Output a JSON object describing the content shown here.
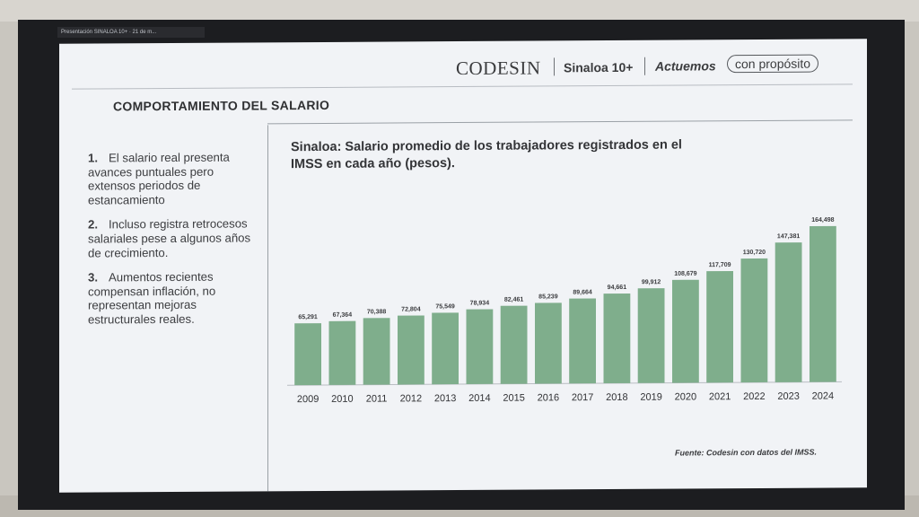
{
  "window": {
    "tab_label": "Presentación SINALOA 10+ · 21 de m..."
  },
  "header": {
    "logo_text": "CODESIN",
    "brand": "Sinaloa 10+",
    "slogan_part1": "Actuemos",
    "slogan_part2": "con propósito"
  },
  "slide": {
    "section_title": "COMPORTAMIENTO DEL SALARIO",
    "points": [
      {
        "number": "1.",
        "text": "El salario real presenta avances puntuales pero extensos periodos de estancamiento"
      },
      {
        "number": "2.",
        "text": "Incluso registra retrocesos salariales pese a algunos años de crecimiento."
      },
      {
        "number": "3.",
        "text": "Aumentos recientes compensan inflación, no representan mejoras estructurales reales."
      }
    ],
    "source": "Fuente: Codesin con datos del IMSS."
  },
  "colors": {
    "bar": "#7fae8c",
    "slide_bg": "#f1f3f6",
    "text": "#333437"
  },
  "chart_data": {
    "type": "bar",
    "title": "Sinaloa: Salario promedio de los trabajadores registrados en el IMSS en cada año (pesos).",
    "xlabel": "",
    "ylabel": "",
    "categories": [
      "2009",
      "2010",
      "2011",
      "2012",
      "2013",
      "2014",
      "2015",
      "2016",
      "2017",
      "2018",
      "2019",
      "2020",
      "2021",
      "2022",
      "2023",
      "2024"
    ],
    "values": [
      65291,
      67364,
      70388,
      72804,
      75549,
      78934,
      82461,
      85239,
      89664,
      94661,
      99912,
      108679,
      117709,
      130720,
      147381,
      164498
    ],
    "value_labels": [
      "65,291",
      "67,364",
      "70,388",
      "72,804",
      "75,549",
      "78,934",
      "82,461",
      "85,239",
      "89,664",
      "94,661",
      "99,912",
      "108,679",
      "117,709",
      "130,720",
      "147,381",
      "164,498"
    ],
    "ylim": [
      0,
      180000
    ],
    "grid": false,
    "legend": "none"
  }
}
